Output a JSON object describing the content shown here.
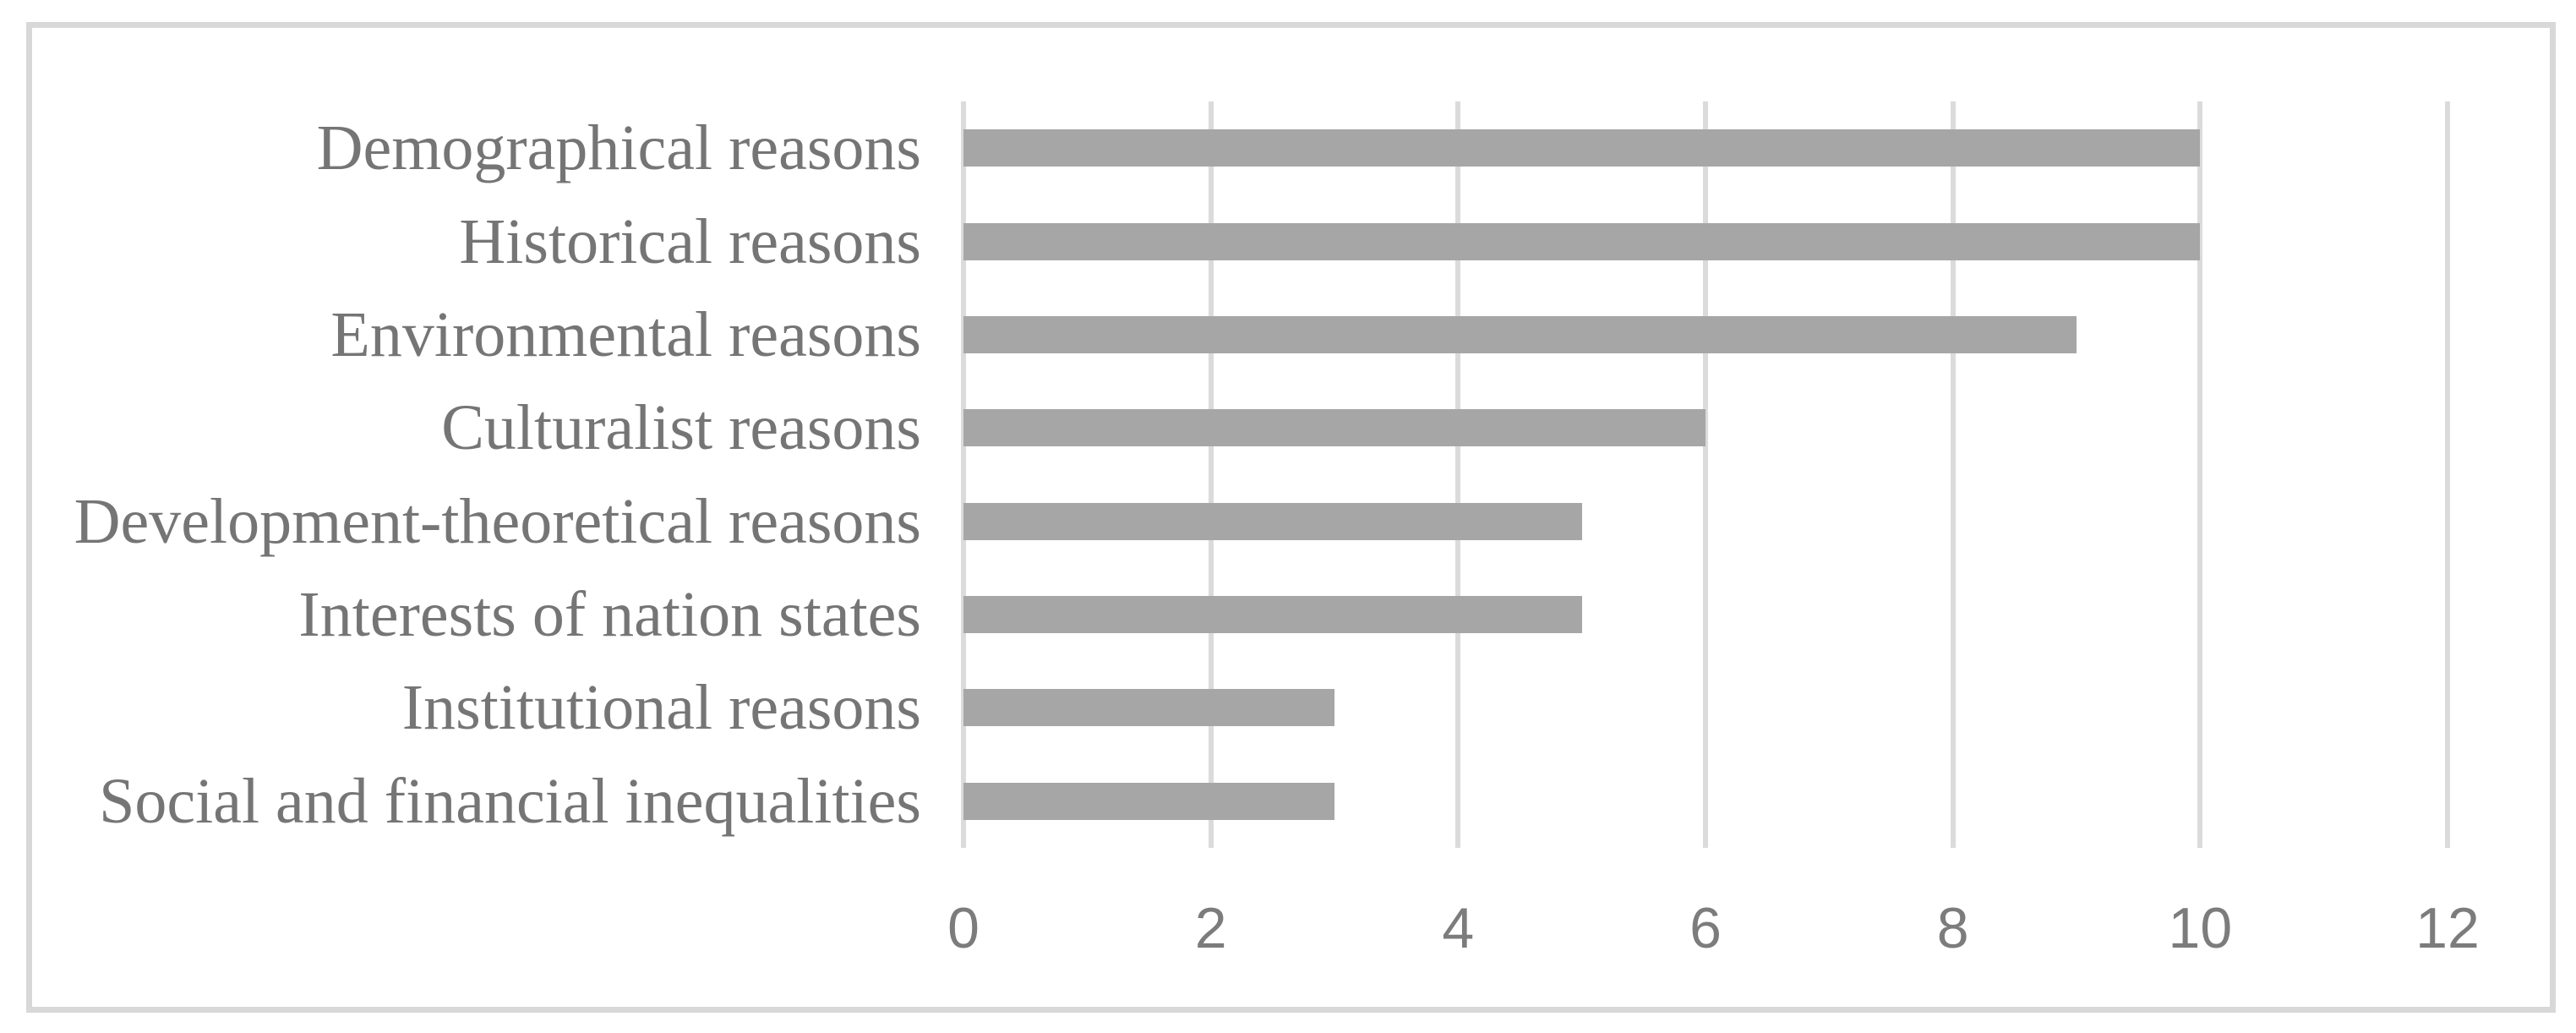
{
  "chart_data": {
    "type": "bar",
    "orientation": "horizontal",
    "title": "",
    "xlabel": "",
    "ylabel": "",
    "categories": [
      "Demographical reasons",
      "Historical reasons",
      "Environmental reasons",
      "Culturalist reasons",
      "Development-theoretical reasons",
      "Interests of nation states",
      "Institutional reasons",
      "Social and financial inequalities"
    ],
    "values": [
      10,
      10,
      9,
      6,
      5,
      5,
      3,
      3
    ],
    "xlim": [
      0,
      12
    ],
    "xticks": [
      0,
      2,
      4,
      6,
      8,
      10,
      12
    ],
    "xtick_labels": [
      "0",
      "2",
      "4",
      "6",
      "8",
      "10",
      "12"
    ],
    "grid": "vertical-on",
    "legend": "none",
    "colors": {
      "bar": "#a6a6a6",
      "gridline": "#dbdbdb",
      "category_text": "#757575",
      "tick_text": "#7c7c7c",
      "frame_border": "#d8d8d8",
      "background": "#ffffff"
    }
  }
}
